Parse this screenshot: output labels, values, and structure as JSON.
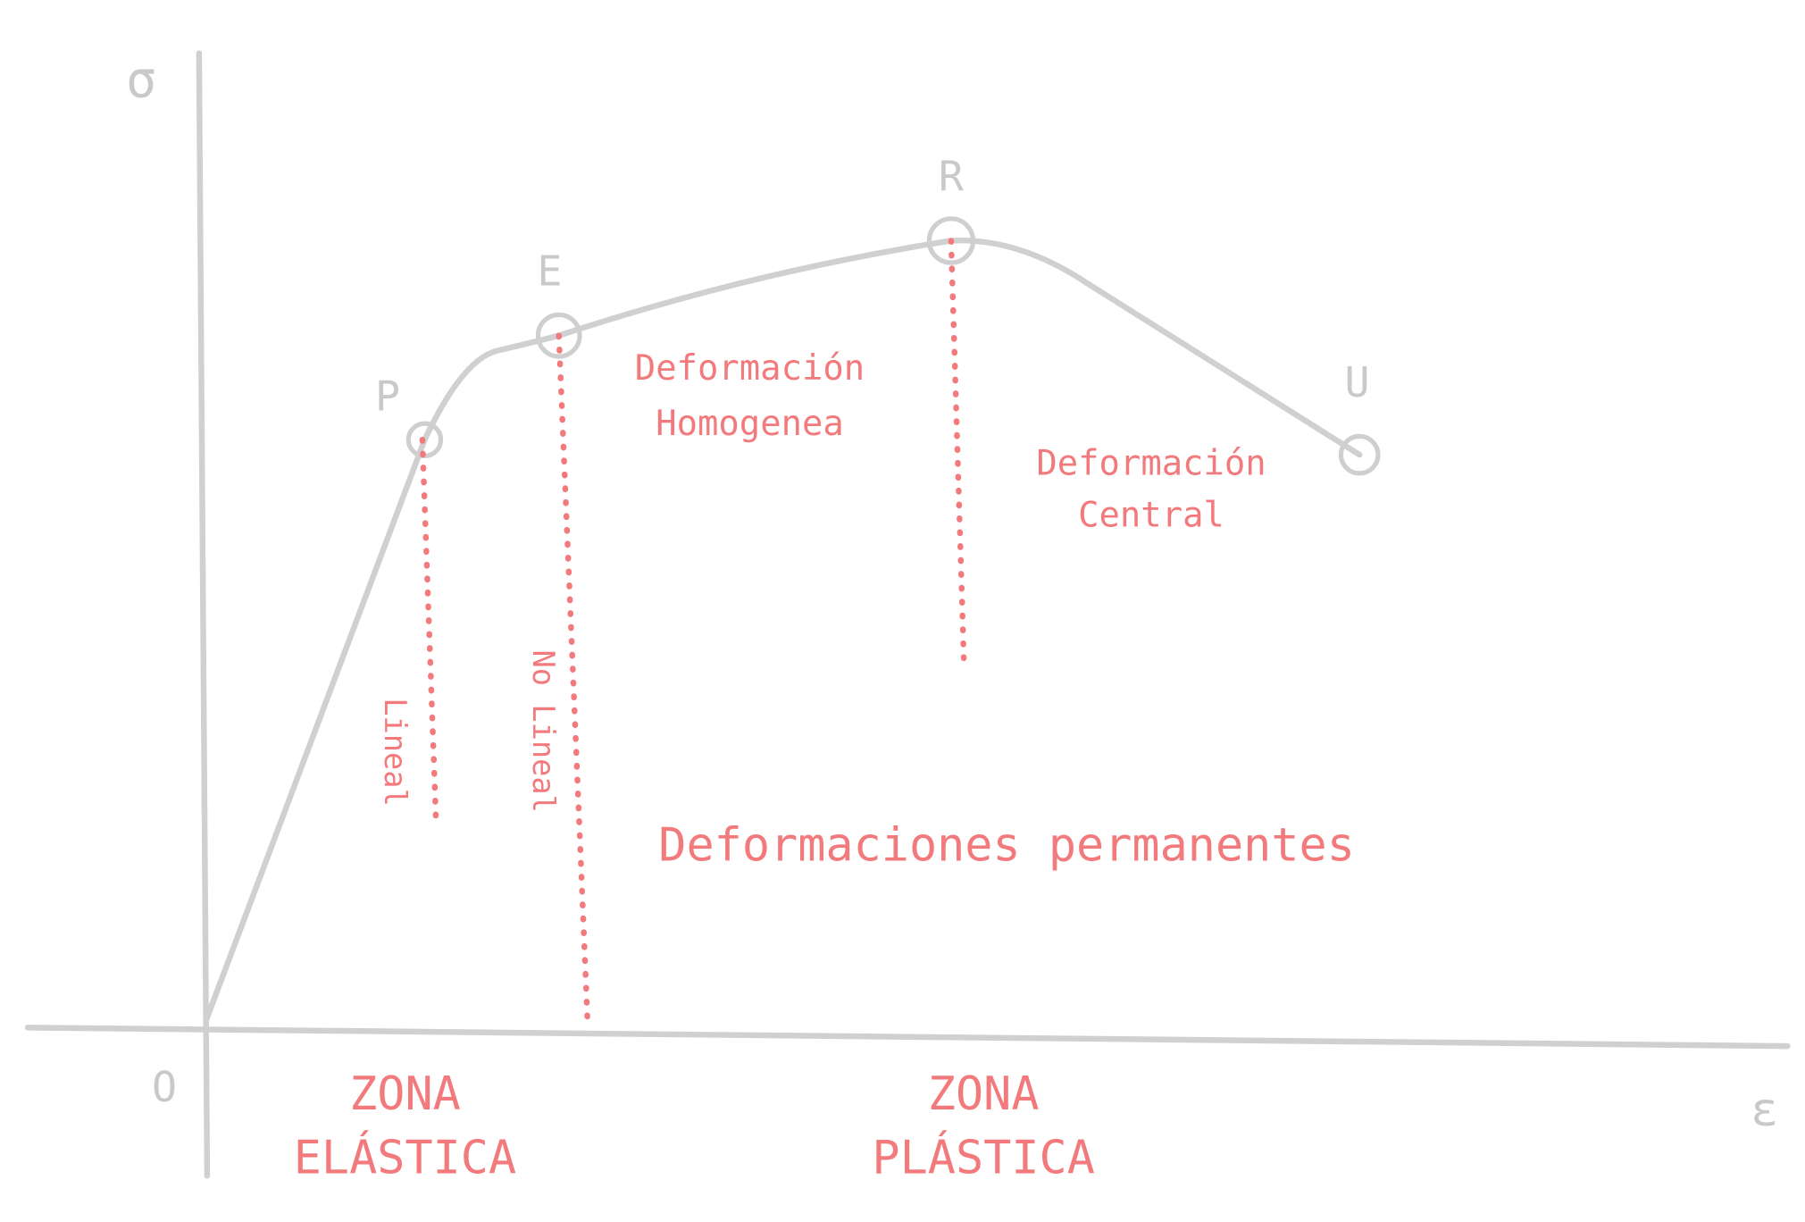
{
  "axes": {
    "y_label": "σ",
    "origin_label": "O",
    "x_label": "ε"
  },
  "points": [
    {
      "label": "P"
    },
    {
      "label": "E"
    },
    {
      "label": "R"
    },
    {
      "label": "U"
    }
  ],
  "annotations": {
    "lineal": "Lineal",
    "no_lineal": "No Lineal",
    "homogenea": [
      "Deformación",
      "Homogenea"
    ],
    "central": [
      "Deformación",
      "Central"
    ],
    "permanentes": "Deformaciones permanentes"
  },
  "zones": {
    "elastica": [
      "ZONA",
      "ELÁSTICA"
    ],
    "plastica": [
      "ZONA",
      "PLÁSTICA"
    ]
  }
}
